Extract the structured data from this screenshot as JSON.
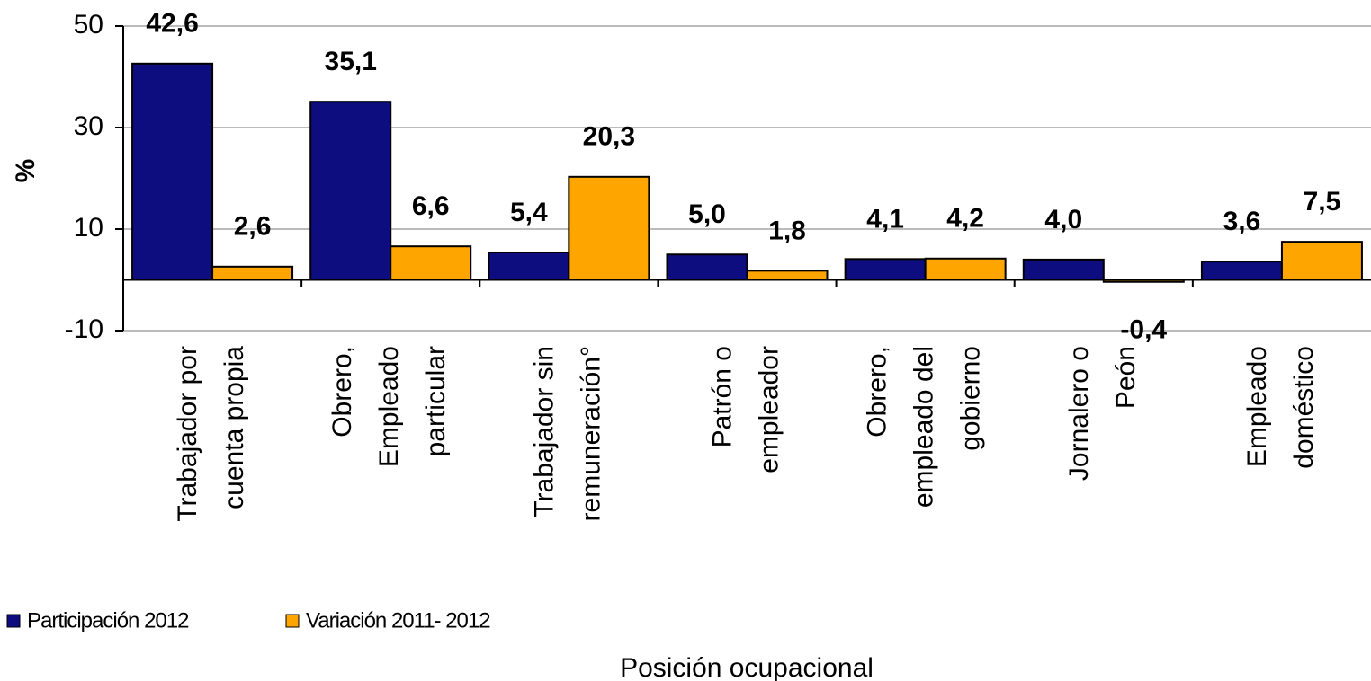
{
  "chart_data": {
    "type": "bar",
    "categories": [
      "Trabajador por\ncuenta propia",
      "Obrero,\nEmpleado\nparticular",
      "Trabajador sin\nremuneración°",
      "Patrón o\nempleador",
      "Obrero,\nempleado del\ngobierno",
      "Jornalero o\nPeón",
      "Empleado\ndoméstico"
    ],
    "series": [
      {
        "name": "Participación 2012",
        "color": "#0d0d80",
        "label_color": "#0d0d80",
        "values": [
          42.6,
          35.1,
          5.4,
          5.0,
          4.1,
          4.0,
          3.6
        ],
        "value_labels": [
          "42,6",
          "35,1",
          "5,4",
          "5,0",
          "4,1",
          "4,0",
          "3,6"
        ]
      },
      {
        "name": "Variación 2011- 2012",
        "color": "#ffa500",
        "label_color": "#f47a1f",
        "values": [
          2.6,
          6.6,
          20.3,
          1.8,
          4.2,
          -0.4,
          7.5
        ],
        "value_labels": [
          "2,6",
          "6,6",
          "20,3",
          "1,8",
          "4,2",
          "-0,4",
          "7,5"
        ]
      }
    ],
    "ylabel": "%",
    "xlabel": "Posición ocupacional",
    "ylim": [
      -10,
      50
    ],
    "yticks": [
      -10,
      10,
      30,
      50
    ],
    "grid": true
  }
}
